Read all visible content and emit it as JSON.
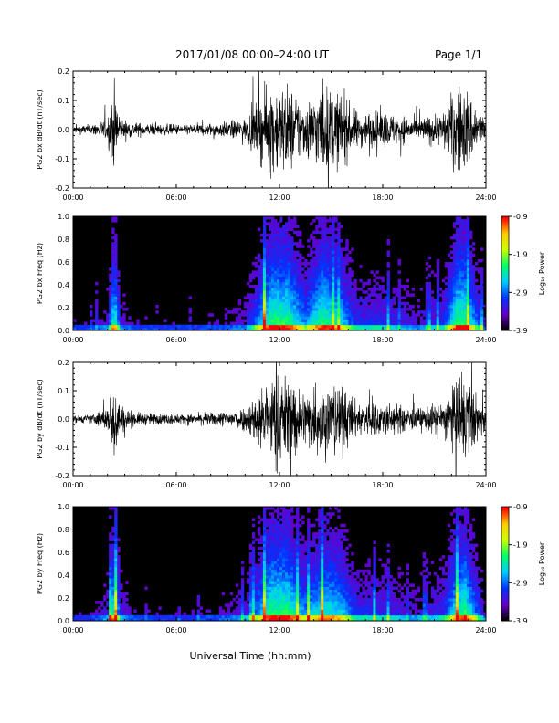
{
  "header": {
    "title": "2017/01/08  00:00–24:00 UT",
    "page": "Page 1/1"
  },
  "xlabel": "Universal Time (hh:mm)",
  "x_ticks": [
    "00:00",
    "06:00",
    "12:00",
    "18:00",
    "24:00"
  ],
  "colorbar": {
    "label": "Log₁₀ Power",
    "ticks": [
      "-0.9",
      "-1.9",
      "-2.9",
      "-3.9"
    ],
    "range": [
      -3.9,
      -0.9
    ],
    "colors": [
      "#000000",
      "#6600cc",
      "#0033ff",
      "#00ccff",
      "#00ff66",
      "#ccff00",
      "#ffcc00",
      "#ff0000"
    ]
  },
  "chart_data": [
    {
      "type": "line",
      "ylabel": "PG2 bx dB/dt (nT/sec)",
      "y_ticks": [
        "0.2",
        "0.1",
        "0.0",
        "-0.1",
        "-0.2"
      ],
      "xlim": [
        0,
        24
      ],
      "ylim": [
        -0.2,
        0.2
      ],
      "activity_envelope": {
        "x": [
          0,
          1,
          2,
          2.4,
          2.8,
          3.5,
          5,
          7,
          8.5,
          10,
          11.5,
          12.5,
          13.5,
          14.5,
          15.5,
          16.5,
          18,
          20,
          21.5,
          22.3,
          22.8,
          24
        ],
        "amplitude": [
          0.02,
          0.03,
          0.06,
          0.25,
          0.06,
          0.04,
          0.03,
          0.03,
          0.04,
          0.06,
          0.25,
          0.25,
          0.15,
          0.25,
          0.2,
          0.1,
          0.1,
          0.06,
          0.1,
          0.25,
          0.25,
          0.05
        ]
      }
    },
    {
      "type": "heatmap",
      "ylabel": "PG2 bx Freq (Hz)",
      "y_ticks": [
        "1.0",
        "0.8",
        "0.6",
        "0.4",
        "0.2",
        "0.0"
      ],
      "xlim": [
        0,
        24
      ],
      "ylim": [
        0,
        1.0
      ],
      "zlim": [
        -3.9,
        -0.9
      ]
    },
    {
      "type": "line",
      "ylabel": "PG2 by dB/dt (nT/sec)",
      "y_ticks": [
        "0.2",
        "0.1",
        "0.0",
        "-0.1",
        "-0.2"
      ],
      "xlim": [
        0,
        24
      ],
      "ylim": [
        -0.2,
        0.2
      ],
      "activity_envelope": {
        "x": [
          0,
          1,
          2,
          2.4,
          2.8,
          3.5,
          5,
          7,
          8.5,
          10,
          11.5,
          12.5,
          13.5,
          14.5,
          15.5,
          16.5,
          18,
          20,
          21.5,
          22.3,
          22.8,
          24
        ],
        "amplitude": [
          0.02,
          0.025,
          0.07,
          0.25,
          0.08,
          0.04,
          0.03,
          0.03,
          0.04,
          0.07,
          0.25,
          0.25,
          0.16,
          0.22,
          0.2,
          0.1,
          0.1,
          0.06,
          0.1,
          0.22,
          0.25,
          0.05
        ]
      }
    },
    {
      "type": "heatmap",
      "ylabel": "PG2 by Freq (Hz)",
      "y_ticks": [
        "1.0",
        "0.8",
        "0.6",
        "0.4",
        "0.2",
        "0.0"
      ],
      "xlim": [
        0,
        24
      ],
      "ylim": [
        0,
        1.0
      ],
      "zlim": [
        -3.9,
        -0.9
      ]
    }
  ]
}
